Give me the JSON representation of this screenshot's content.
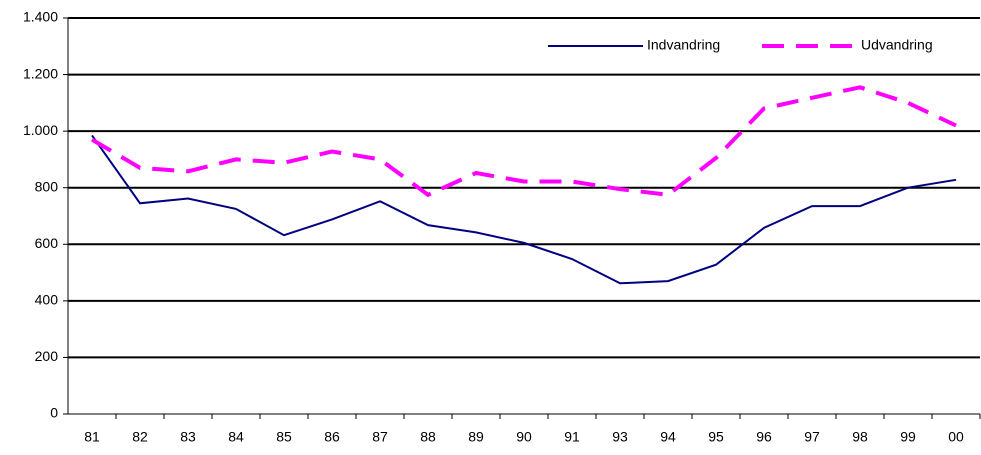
{
  "chart_data": {
    "type": "line",
    "categories": [
      "81",
      "82",
      "83",
      "84",
      "85",
      "86",
      "87",
      "88",
      "89",
      "90",
      "91",
      "93",
      "94",
      "95",
      "96",
      "97",
      "98",
      "99",
      "00"
    ],
    "series": [
      {
        "name": "Indvandring",
        "color": "#000080",
        "dash": false,
        "values": [
          985,
          745,
          762,
          725,
          632,
          688,
          752,
          668,
          642,
          605,
          548,
          462,
          470,
          528,
          658,
          735,
          735,
          800,
          828
        ]
      },
      {
        "name": "Udvandring",
        "color": "#ff00ff",
        "dash": true,
        "values": [
          970,
          870,
          858,
          900,
          888,
          928,
          900,
          775,
          852,
          822,
          822,
          795,
          775,
          905,
          1080,
          1118,
          1155,
          1100,
          1020
        ]
      }
    ],
    "ylim": [
      0,
      1400
    ],
    "yticks": [
      0,
      200,
      400,
      600,
      800,
      {
        "value": 1000,
        "label": "1.000"
      },
      {
        "value": 1200,
        "label": "1.200"
      },
      {
        "value": 1400,
        "label": "1.400"
      }
    ],
    "grid": true,
    "legend": "upper right"
  }
}
